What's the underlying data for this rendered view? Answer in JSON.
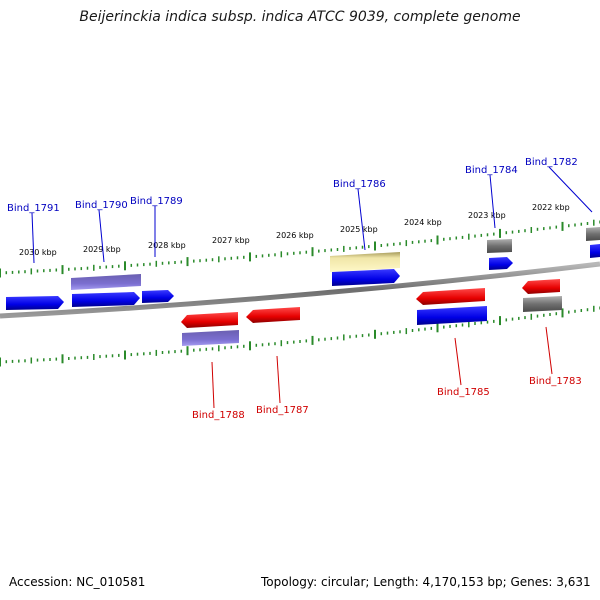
{
  "title": "Beijerinckia indica subsp. indica ATCC 9039, complete genome",
  "footer": {
    "accession": "Accession: NC_010581",
    "summary": "Topology: circular; Length: 4,170,153 bp; Genes: 3,631"
  },
  "colors": {
    "backbone": "#8a8a8a",
    "ticks": "#2a8a2a",
    "label_forward": "#0000c0",
    "label_reverse": "#d00000",
    "leader_forward": "#0000d0",
    "leader_reverse": "#d00000"
  },
  "scale_labels": [
    "2030 kbp",
    "2029 kbp",
    "2028 kbp",
    "2027 kbp",
    "2026 kbp",
    "2025 kbp",
    "2024 kbp",
    "2023 kbp",
    "2022 kbp"
  ],
  "gene_labels": [
    {
      "id": "bind-1791",
      "text": "Bind_1791",
      "strand": "forward"
    },
    {
      "id": "bind-1790",
      "text": "Bind_1790",
      "strand": "forward"
    },
    {
      "id": "bind-1789",
      "text": "Bind_1789",
      "strand": "forward"
    },
    {
      "id": "bind-1786",
      "text": "Bind_1786",
      "strand": "forward"
    },
    {
      "id": "bind-1784",
      "text": "Bind_1784",
      "strand": "forward"
    },
    {
      "id": "bind-1782",
      "text": "Bind_1782",
      "strand": "forward"
    },
    {
      "id": "bind-1788",
      "text": "Bind_1788",
      "strand": "reverse"
    },
    {
      "id": "bind-1787",
      "text": "Bind_1787",
      "strand": "reverse"
    },
    {
      "id": "bind-1785",
      "text": "Bind_1785",
      "strand": "reverse"
    },
    {
      "id": "bind-1783",
      "text": "Bind_1783",
      "strand": "reverse"
    }
  ]
}
